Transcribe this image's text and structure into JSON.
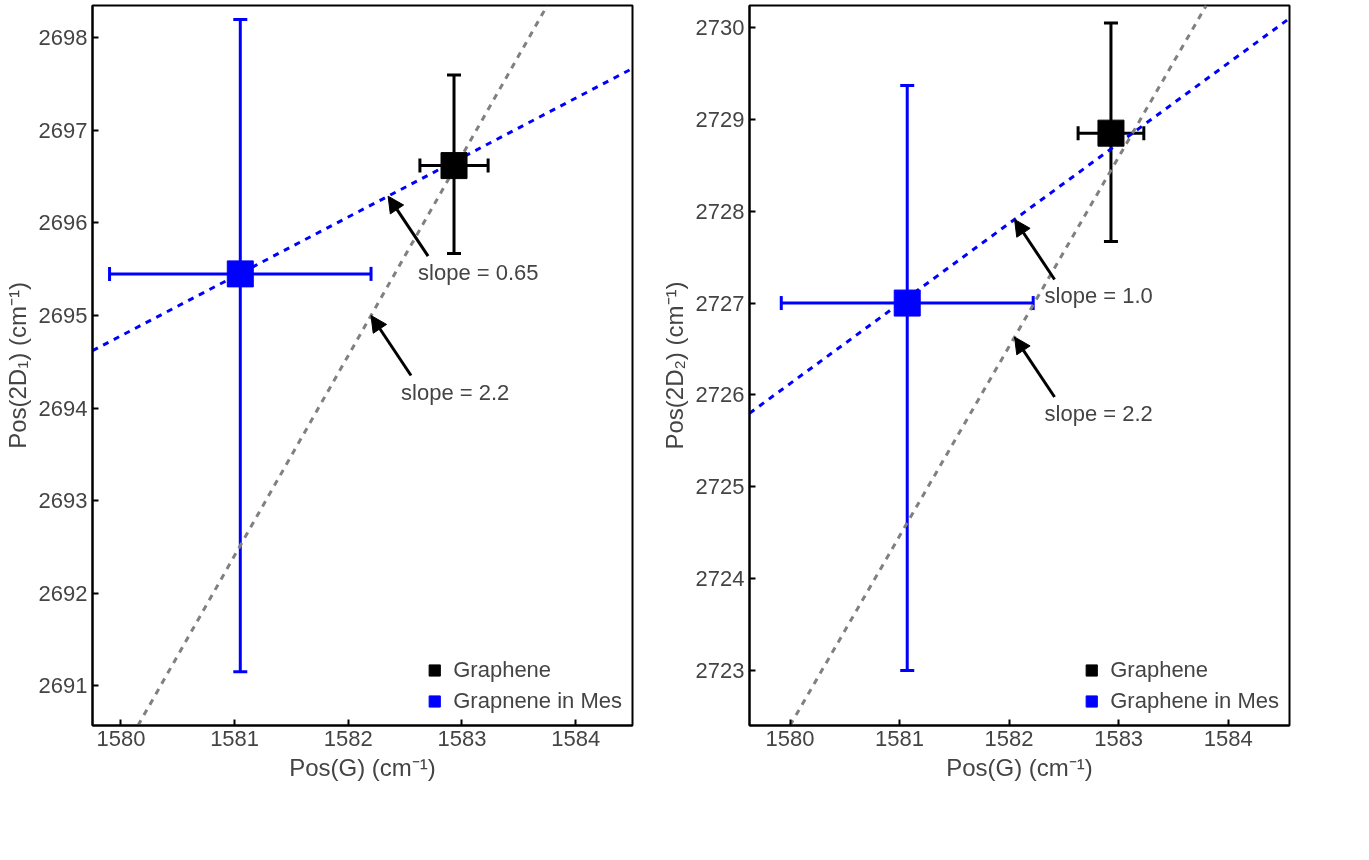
{
  "chart_data": [
    {
      "type": "scatter",
      "xlabel": "Pos(G) (cm⁻¹)",
      "ylabel": "Pos(2D₁) (cm⁻¹)",
      "xlim": [
        1579.75,
        1584.5
      ],
      "ylim": [
        2690.57,
        2698.35
      ],
      "xticks": [
        1580,
        1581,
        1582,
        1583,
        1584
      ],
      "yticks": [
        2691,
        2692,
        2693,
        2694,
        2695,
        2696,
        2697,
        2698
      ],
      "grid": false,
      "legend": "bottom right",
      "marker": "square",
      "series": [
        {
          "type": "line",
          "marker": "none",
          "color": "#808080",
          "line_style": "dashed",
          "x": [
            1580.15,
            1583.75
          ],
          "values": [
            2690.57,
            2698.35
          ]
        },
        {
          "type": "line",
          "marker": "none",
          "color": "#0000ff",
          "line_style": "dashed",
          "x": [
            1579.75,
            1584.5
          ],
          "values": [
            2694.62,
            2697.67
          ]
        },
        {
          "name": "Graphene",
          "color": "#000000",
          "x": [
            1582.93
          ],
          "values": [
            2696.62
          ],
          "errors": [
            [
              2695.67,
              2697.6
            ]
          ],
          "xerrors": [
            0.3
          ]
        },
        {
          "name": "Grapnene in Mes",
          "color": "#0000ff",
          "x": [
            1581.05
          ],
          "values": [
            2695.45
          ],
          "errors": [
            [
              2691.15,
              2698.2
            ]
          ],
          "xerrors": [
            1.15
          ]
        }
      ],
      "annotations": [
        {
          "text": "slope = 0.65",
          "x": 1582.35,
          "y": 2696.29
        },
        {
          "text": "slope = 2.2",
          "x": 1582.2,
          "y": 2695.0
        }
      ]
    },
    {
      "type": "scatter",
      "xlabel": "Pos(G) (cm⁻¹)",
      "ylabel": "Pos(2D₂) (cm⁻¹)",
      "xlim": [
        1579.63,
        1584.56
      ],
      "ylim": [
        2722.4,
        2730.24
      ],
      "xticks": [
        1580,
        1581,
        1582,
        1583,
        1584
      ],
      "yticks": [
        2723,
        2724,
        2725,
        2726,
        2727,
        2728,
        2729,
        2730
      ],
      "grid": false,
      "legend": "bottom right",
      "marker": "square",
      "series": [
        {
          "type": "line",
          "marker": "none",
          "color": "#808080",
          "line_style": "dashed",
          "x": [
            1580.0,
            1583.8
          ],
          "values": [
            2722.4,
            2730.24
          ]
        },
        {
          "type": "line",
          "marker": "none",
          "color": "#0000ff",
          "line_style": "dashed",
          "x": [
            1579.63,
            1584.56
          ],
          "values": [
            2725.8,
            2730.1
          ]
        },
        {
          "name": "Graphene",
          "color": "#000000",
          "x": [
            1582.93
          ],
          "values": [
            2728.85
          ],
          "errors": [
            [
              2727.67,
              2730.05
            ]
          ],
          "xerrors": [
            0.3
          ]
        },
        {
          "name": "Graphene in Mes",
          "color": "#0000ff",
          "x": [
            1581.07
          ],
          "values": [
            2727.0
          ],
          "errors": [
            [
              2723.0,
              2729.37
            ]
          ],
          "xerrors": [
            1.15
          ]
        }
      ],
      "annotations": [
        {
          "text": "slope = 1.0",
          "x": 1582.05,
          "y": 2727.91
        },
        {
          "text": "slope = 2.2",
          "x": 1582.05,
          "y": 2726.63
        }
      ]
    }
  ]
}
